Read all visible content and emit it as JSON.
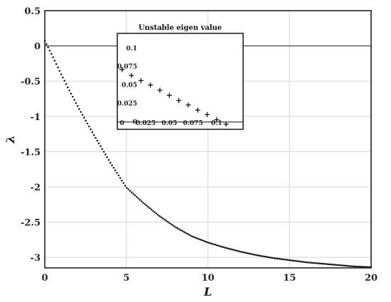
{
  "chart_data": [
    {
      "type": "scatter",
      "xlabel": "L",
      "ylabel": "λ",
      "xlim": [
        0,
        20
      ],
      "ylim": [
        -3.15,
        0.5
      ],
      "xticks": [
        0,
        5,
        10,
        15,
        20
      ],
      "xtick_labels": [
        "0",
        "5",
        "10",
        "15",
        "20"
      ],
      "yticks": [
        0.5,
        0,
        -0.5,
        -1,
        -1.5,
        -2,
        -2.5,
        -3
      ],
      "ytick_labels": [
        "0.5",
        "0",
        "-0.5",
        "-1",
        "-1.5",
        "-2",
        "-2.5",
        "-3"
      ],
      "grid": true,
      "reference_line": {
        "y": 0
      },
      "curve_samples": {
        "x": [
          0,
          0.2,
          0.5,
          1,
          1.5,
          2,
          3,
          4,
          5,
          6,
          7,
          8,
          9,
          10,
          11,
          12,
          13,
          14,
          15,
          16,
          17,
          18,
          19,
          20
        ],
        "y": [
          0.07,
          -0.02,
          -0.16,
          -0.4,
          -0.63,
          -0.85,
          -1.26,
          -1.65,
          -2.01,
          -2.22,
          -2.41,
          -2.57,
          -2.7,
          -2.79,
          -2.86,
          -2.92,
          -2.97,
          -3.01,
          -3.04,
          -3.07,
          -3.09,
          -3.11,
          -3.13,
          -3.14
        ]
      },
      "point_count": 200,
      "marker": "dot"
    },
    {
      "type": "scatter",
      "title": "Unstable eigen value",
      "xlim": [
        -0.005,
        0.128
      ],
      "ylim": [
        -0.01,
        0.12
      ],
      "xticks": [
        0,
        0.025,
        0.05,
        0.075,
        0.1
      ],
      "xtick_labels": [
        "0",
        "0.025",
        "0.05",
        "0.075",
        "0.1"
      ],
      "yticks": [
        0,
        0.025,
        0.05,
        0.075,
        0.1
      ],
      "ytick_labels": [
        "0",
        "0.025",
        "0.05",
        "0.075",
        "0.1"
      ],
      "reference_line": {
        "y": 0
      },
      "x": [
        0,
        0.01,
        0.02,
        0.03,
        0.04,
        0.05,
        0.06,
        0.07,
        0.08,
        0.09,
        0.1,
        0.11
      ],
      "y": [
        0.071,
        0.063,
        0.056,
        0.05,
        0.043,
        0.036,
        0.029,
        0.023,
        0.016,
        0.01,
        0.003,
        -0.003
      ],
      "marker": "plus"
    }
  ]
}
